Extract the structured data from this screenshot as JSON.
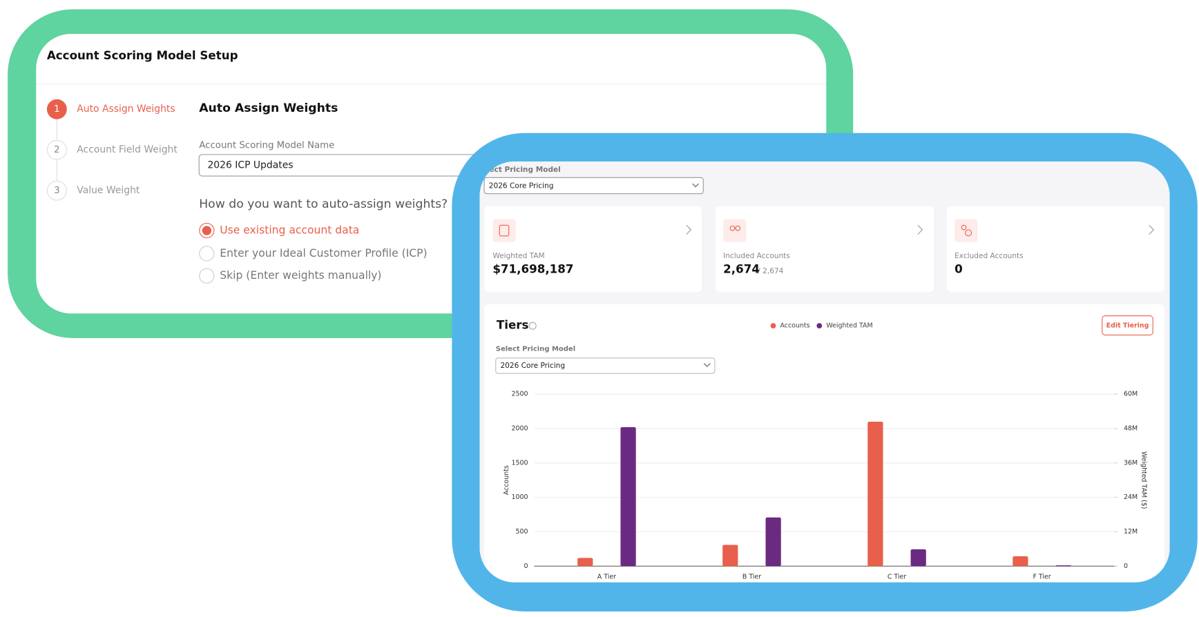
{
  "setup": {
    "title": "Account Scoring Model Setup",
    "steps": [
      {
        "number": "1",
        "label": "Auto Assign Weights"
      },
      {
        "number": "2",
        "label": "Account Field Weight"
      },
      {
        "number": "3",
        "label": "Value Weight"
      }
    ],
    "section_title": "Auto Assign Weights",
    "name_label": "Account Scoring Model Name",
    "name_value": "2026 ICP Updates",
    "question": "How do you want to auto-assign weights?",
    "options": [
      "Use existing account data",
      "Enter your Ideal Customer Profile (ICP)",
      "Skip (Enter weights manually)"
    ]
  },
  "dashboard": {
    "pricing_label": "Select Pricing Model",
    "pricing_value": "2026 Core Pricing",
    "cards": [
      {
        "label": "Weighted TAM",
        "value": "$71,698,187"
      },
      {
        "label": "Included Accounts",
        "value": "2,674",
        "total": "/ 2,674"
      },
      {
        "label": "Excluded Accounts",
        "value": "0"
      }
    ],
    "tiers_select_label": "Select Pricing Model",
    "tiers_select_value": "2026 Core Pricing",
    "edit_button": "Edit Tiering"
  },
  "chart_data": {
    "type": "bar",
    "title": "Tiers",
    "categories": [
      "A Tier",
      "B Tier",
      "C Tier",
      "F Tier"
    ],
    "series": [
      {
        "name": "Accounts",
        "color": "#e8604c",
        "values": [
          120,
          310,
          2100,
          144
        ]
      },
      {
        "name": "Weighted TAM",
        "color": "#6b2a82",
        "axis": "y2",
        "values": [
          48500000,
          17000000,
          5900000,
          300000
        ]
      }
    ],
    "y_label": "Accounts",
    "y2_label": "Weighted TAM ($)",
    "ylim": [
      0,
      2500
    ],
    "yticks": [
      0,
      500,
      1000,
      1500,
      2000,
      2500
    ],
    "y2lim": [
      0,
      60000000
    ],
    "y2ticks": [
      {
        "value": 0,
        "label": "0"
      },
      {
        "value": 12000000,
        "label": "12M"
      },
      {
        "value": 24000000,
        "label": "24M"
      },
      {
        "value": 36000000,
        "label": "36M"
      },
      {
        "value": 48000000,
        "label": "48M"
      },
      {
        "value": 60000000,
        "label": "60M"
      }
    ],
    "grid": true
  }
}
